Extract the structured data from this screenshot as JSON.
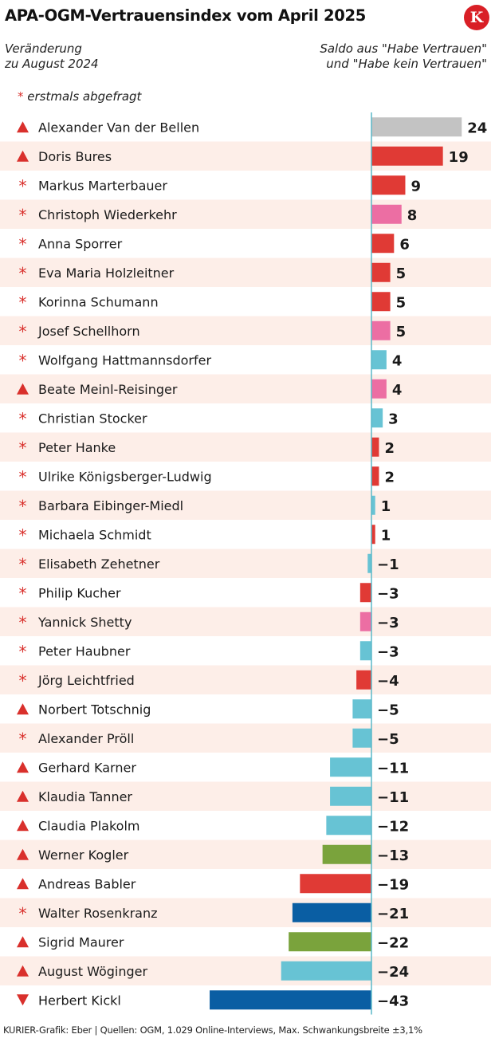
{
  "title": "APA-OGM-Vertrauensindex vom April 2025",
  "logo_letter": "K",
  "subtitle_left": [
    "Veränderung",
    "zu August 2024"
  ],
  "subtitle_right": [
    "Saldo aus \"Habe Vertrauen\"",
    "und \"Habe kein Vertrauen\""
  ],
  "note": {
    "marker": "*",
    "text": "erstmals abgefragt"
  },
  "footer": "KURIER-Grafik: Eber | Quellen: OGM, 1.029 Online-Interviews, Max. Schwankungsbreite ±3,1%",
  "colors": {
    "row_stripe": "#fdeee8",
    "axis": "#5bb8c8",
    "marker_red": "#d9302c",
    "gray": "#c3c3c3",
    "red": "#e03a35",
    "pink": "#ec6ea3",
    "lightblue": "#67c3d4",
    "green": "#7aa33c",
    "darkblue": "#0a5ea3"
  },
  "chart_data": {
    "type": "bar",
    "orientation": "horizontal",
    "title": "APA-OGM-Vertrauensindex vom April 2025",
    "value_label": "Saldo aus \"Habe Vertrauen\" und \"Habe kein Vertrauen\"",
    "change_label": "Veränderung zu August 2024",
    "xlim": [
      -43,
      24
    ],
    "grid": false,
    "legend": "none",
    "items": [
      {
        "name": "Alexander Van der Bellen",
        "value": 24,
        "change": "up",
        "color": "gray"
      },
      {
        "name": "Doris Bures",
        "value": 19,
        "change": "up",
        "color": "red"
      },
      {
        "name": "Markus Marterbauer",
        "value": 9,
        "change": "new",
        "color": "red"
      },
      {
        "name": "Christoph Wiederkehr",
        "value": 8,
        "change": "new",
        "color": "pink"
      },
      {
        "name": "Anna Sporrer",
        "value": 6,
        "change": "new",
        "color": "red"
      },
      {
        "name": "Eva Maria Holzleitner",
        "value": 5,
        "change": "new",
        "color": "red"
      },
      {
        "name": "Korinna Schumann",
        "value": 5,
        "change": "new",
        "color": "red"
      },
      {
        "name": "Josef Schellhorn",
        "value": 5,
        "change": "new",
        "color": "pink"
      },
      {
        "name": "Wolfgang Hattmannsdorfer",
        "value": 4,
        "change": "new",
        "color": "lightblue"
      },
      {
        "name": "Beate Meinl-Reisinger",
        "value": 4,
        "change": "up",
        "color": "pink"
      },
      {
        "name": "Christian Stocker",
        "value": 3,
        "change": "new",
        "color": "lightblue"
      },
      {
        "name": "Peter Hanke",
        "value": 2,
        "change": "new",
        "color": "red"
      },
      {
        "name": "Ulrike Königsberger-Ludwig",
        "value": 2,
        "change": "new",
        "color": "red"
      },
      {
        "name": "Barbara Eibinger-Miedl",
        "value": 1,
        "change": "new",
        "color": "lightblue"
      },
      {
        "name": "Michaela Schmidt",
        "value": 1,
        "change": "new",
        "color": "red"
      },
      {
        "name": "Elisabeth Zehetner",
        "value": -1,
        "change": "new",
        "color": "lightblue"
      },
      {
        "name": "Philip Kucher",
        "value": -3,
        "change": "new",
        "color": "red"
      },
      {
        "name": "Yannick Shetty",
        "value": -3,
        "change": "new",
        "color": "pink"
      },
      {
        "name": "Peter Haubner",
        "value": -3,
        "change": "new",
        "color": "lightblue"
      },
      {
        "name": "Jörg Leichtfried",
        "value": -4,
        "change": "new",
        "color": "red"
      },
      {
        "name": "Norbert Totschnig",
        "value": -5,
        "change": "up",
        "color": "lightblue"
      },
      {
        "name": "Alexander Pröll",
        "value": -5,
        "change": "new",
        "color": "lightblue"
      },
      {
        "name": "Gerhard Karner",
        "value": -11,
        "change": "up",
        "color": "lightblue"
      },
      {
        "name": "Klaudia Tanner",
        "value": -11,
        "change": "up",
        "color": "lightblue"
      },
      {
        "name": "Claudia Plakolm",
        "value": -12,
        "change": "up",
        "color": "lightblue"
      },
      {
        "name": "Werner Kogler",
        "value": -13,
        "change": "up",
        "color": "green"
      },
      {
        "name": "Andreas Babler",
        "value": -19,
        "change": "up",
        "color": "red"
      },
      {
        "name": "Walter Rosenkranz",
        "value": -21,
        "change": "new",
        "color": "darkblue"
      },
      {
        "name": "Sigrid Maurer",
        "value": -22,
        "change": "up",
        "color": "green"
      },
      {
        "name": "August Wöginger",
        "value": -24,
        "change": "up",
        "color": "lightblue"
      },
      {
        "name": "Herbert Kickl",
        "value": -43,
        "change": "down",
        "color": "darkblue"
      }
    ]
  }
}
